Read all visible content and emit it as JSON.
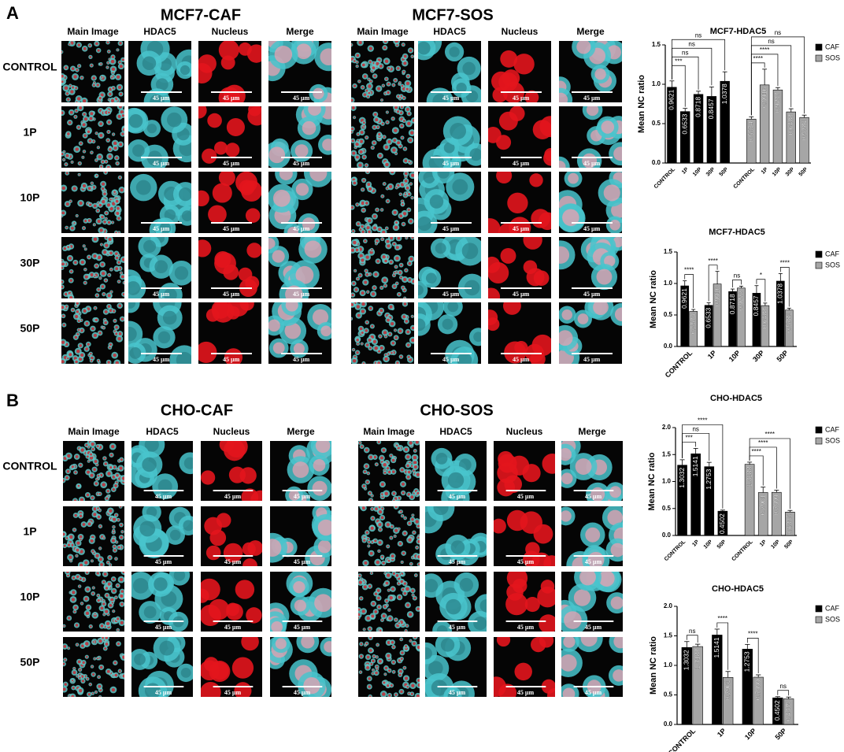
{
  "panels": [
    {
      "label": "A",
      "titles": [
        "MCF7-CAF",
        "MCF7-SOS"
      ],
      "columns": [
        "Main Image",
        "HDAC5",
        "Nucleus",
        "Merge"
      ],
      "rows": [
        "CONTROL",
        "1P",
        "10P",
        "30P",
        "50P"
      ]
    },
    {
      "label": "B",
      "titles": [
        "CHO-CAF",
        "CHO-SOS"
      ],
      "columns": [
        "Main Image",
        "HDAC5",
        "Nucleus",
        "Merge"
      ],
      "rows": [
        "CONTROL",
        "1P",
        "10P",
        "50P"
      ]
    }
  ],
  "scale_bar": "45 µm",
  "chart_data": [
    {
      "type": "bar",
      "title": "MCF7-HDAC5",
      "ylabel": "Mean NC ratio",
      "categories": [
        "CONTROL",
        "1P",
        "10P",
        "30P",
        "50P",
        "CONTROL",
        "1P",
        "10P",
        "30P",
        "50P"
      ],
      "series": [
        {
          "name": "CAF",
          "color": "#000000",
          "values": [
            0.9621,
            0.6533,
            0.8718,
            0.8457,
            1.0378,
            null,
            null,
            null,
            null,
            null
          ],
          "errors": [
            0.08,
            0.04,
            0.04,
            0.12,
            0.12,
            null,
            null,
            null,
            null,
            null
          ],
          "annotations": [
            "***",
            "ns",
            "ns",
            "ns"
          ]
        },
        {
          "name": "SOS",
          "color": "#a6a6a6",
          "values": [
            null,
            null,
            null,
            null,
            null,
            0.5574,
            0.9916,
            0.9277,
            0.6488,
            0.5781
          ],
          "errors": [
            null,
            null,
            null,
            null,
            null,
            0.03,
            0.2,
            0.03,
            0.04,
            0.03
          ],
          "annotations": [
            "****",
            "****",
            "ns",
            "ns"
          ]
        }
      ],
      "ylim": [
        0,
        1.5
      ],
      "yticks": [
        {
          "value": 0,
          "label": "0.0"
        },
        0.5,
        {
          "value": 1,
          "label": "1.0"
        },
        1.5
      ],
      "legend": "upper right"
    },
    {
      "type": "bar",
      "title": "MCF7-HDAC5",
      "ylabel": "Mean NC ratio",
      "categories": [
        "CONTROL",
        "1P",
        "10P",
        "30P",
        "50P"
      ],
      "series": [
        {
          "name": "CAF",
          "color": "#000000",
          "values": [
            0.9621,
            0.6533,
            0.8718,
            0.8457,
            1.0378
          ],
          "errors": [
            0.08,
            0.04,
            0.04,
            0.12,
            0.12
          ]
        },
        {
          "name": "SOS",
          "color": "#a6a6a6",
          "values": [
            0.5574,
            0.9916,
            0.9277,
            0.6488,
            0.5781
          ],
          "errors": [
            0.03,
            0.2,
            0.03,
            0.04,
            0.03
          ]
        }
      ],
      "annotations": [
        "****",
        "****",
        "ns",
        "*",
        "****"
      ],
      "ylim": [
        0,
        1.5
      ],
      "yticks": [
        {
          "value": 0,
          "label": "0.0"
        },
        0.5,
        {
          "value": 1,
          "label": "1.0"
        },
        1.5
      ],
      "legend": "upper right"
    },
    {
      "type": "bar",
      "title": "CHO-HDAC5",
      "ylabel": "Mean NC ratio",
      "categories": [
        "CONTROL",
        "1P",
        "10P",
        "50P",
        "CONTROL",
        "1P",
        "10P",
        "50P"
      ],
      "series": [
        {
          "name": "CAF",
          "color": "#000000",
          "values": [
            1.3032,
            1.5141,
            1.2753,
            0.4502,
            null,
            null,
            null,
            null
          ],
          "errors": [
            0.1,
            0.1,
            0.08,
            0.02,
            null,
            null,
            null,
            null
          ],
          "annotations": [
            "***",
            "ns",
            "****"
          ]
        },
        {
          "name": "SOS",
          "color": "#a6a6a6",
          "values": [
            null,
            null,
            null,
            null,
            1.3188,
            0.7961,
            0.7999,
            0.4335
          ],
          "errors": [
            null,
            null,
            null,
            null,
            0.04,
            0.1,
            0.04,
            0.03
          ],
          "annotations": [
            "****",
            "****",
            "****"
          ]
        }
      ],
      "ylim": [
        0,
        2
      ],
      "yticks": [
        {
          "value": 0,
          "label": "0.0"
        },
        0.5,
        {
          "value": 1,
          "label": "1.0"
        },
        1.5,
        {
          "value": 2,
          "label": "2.0"
        }
      ],
      "legend": "upper right"
    },
    {
      "type": "bar",
      "title": "CHO-HDAC5",
      "ylabel": "Mean NC ratio",
      "categories": [
        "CONTROL",
        "1P",
        "10P",
        "50P"
      ],
      "series": [
        {
          "name": "CAF",
          "color": "#000000",
          "values": [
            1.3032,
            1.5141,
            1.2753,
            0.4502
          ],
          "errors": [
            0.1,
            0.1,
            0.08,
            0.02
          ]
        },
        {
          "name": "SOS",
          "color": "#a6a6a6",
          "values": [
            1.3188,
            0.7961,
            0.7999,
            0.4335
          ],
          "errors": [
            0.04,
            0.1,
            0.04,
            0.03
          ]
        }
      ],
      "annotations": [
        "ns",
        "****",
        "****",
        "ns"
      ],
      "ylim": [
        0,
        2
      ],
      "yticks": [
        {
          "value": 0,
          "label": "0.0"
        },
        0.5,
        {
          "value": 1,
          "label": "1.0"
        },
        1.5,
        {
          "value": 2,
          "label": "2.0"
        }
      ],
      "legend": "upper right"
    }
  ]
}
